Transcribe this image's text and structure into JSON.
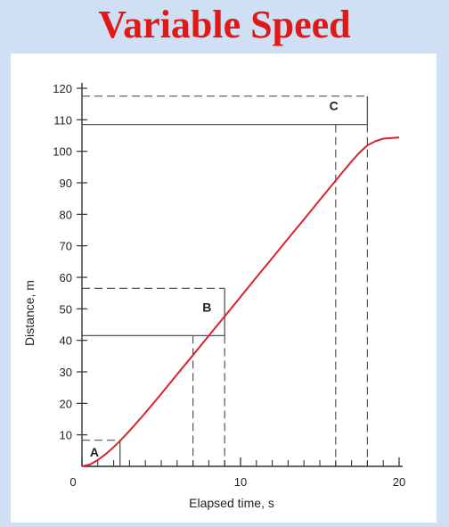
{
  "header": {
    "title": "Variable Speed"
  },
  "colors": {
    "curve": "#d9232e",
    "axis": "#333333",
    "guides": "#555555",
    "background": "#cfe0f5",
    "title": "#e01818"
  },
  "chart_data": {
    "type": "line",
    "title": "",
    "xlabel": "Elapsed time, s",
    "ylabel": "Distance, m",
    "xlim": [
      0,
      20
    ],
    "ylim": [
      0,
      120
    ],
    "x_tick_labels": [
      {
        "value": 0,
        "label": "0"
      },
      {
        "value": 10,
        "label": "10"
      },
      {
        "value": 20,
        "label": "20"
      }
    ],
    "y_tick_labels": [
      {
        "value": 10,
        "label": "10"
      },
      {
        "value": 20,
        "label": "20"
      },
      {
        "value": 30,
        "label": "30"
      },
      {
        "value": 40,
        "label": "40"
      },
      {
        "value": 50,
        "label": "50"
      },
      {
        "value": 60,
        "label": "60"
      },
      {
        "value": 70,
        "label": "70"
      },
      {
        "value": 80,
        "label": "80"
      },
      {
        "value": 90,
        "label": "90"
      },
      {
        "value": 100,
        "label": "100"
      },
      {
        "value": 110,
        "label": "110"
      },
      {
        "value": 120,
        "label": "120"
      }
    ],
    "x_minor_ticks": [
      1,
      2,
      3,
      4,
      5,
      6,
      7,
      8,
      9,
      11,
      12,
      13,
      14,
      15,
      16,
      17,
      18,
      19
    ],
    "series": [
      {
        "values": [
          [
            0,
            0
          ],
          [
            0.5,
            0.6
          ],
          [
            1,
            2.0
          ],
          [
            1.5,
            3.9
          ],
          [
            2,
            6.1
          ],
          [
            2.5,
            8.6
          ],
          [
            3,
            11.3
          ],
          [
            4,
            17.0
          ],
          [
            5,
            23.0
          ],
          [
            6,
            29.2
          ],
          [
            7,
            35.3
          ],
          [
            8,
            41.5
          ],
          [
            9,
            47.6
          ],
          [
            10,
            53.8
          ],
          [
            11,
            60.0
          ],
          [
            12,
            66.1
          ],
          [
            13,
            72.3
          ],
          [
            14,
            78.4
          ],
          [
            15,
            84.6
          ],
          [
            16,
            90.7
          ],
          [
            16.5,
            93.8
          ],
          [
            17,
            96.8
          ],
          [
            17.5,
            99.6
          ],
          [
            18,
            101.9
          ],
          [
            18.5,
            103.2
          ],
          [
            19,
            104.0
          ],
          [
            20,
            104.4
          ]
        ]
      }
    ],
    "annotations": [
      {
        "label": "A",
        "t1": 0,
        "t2": 2.4,
        "d1": 0,
        "d2": 8.3,
        "text_at": [
          0.5,
          4.5
        ]
      },
      {
        "label": "B",
        "t1": 7,
        "t2": 9,
        "d1": 41.5,
        "d2": 56.5,
        "text_at": [
          7.6,
          50.5
        ]
      },
      {
        "label": "C",
        "t1": 16,
        "t2": 18,
        "d1": 108.5,
        "d2": 117.5,
        "text_at": [
          15.6,
          114.5
        ]
      }
    ]
  }
}
